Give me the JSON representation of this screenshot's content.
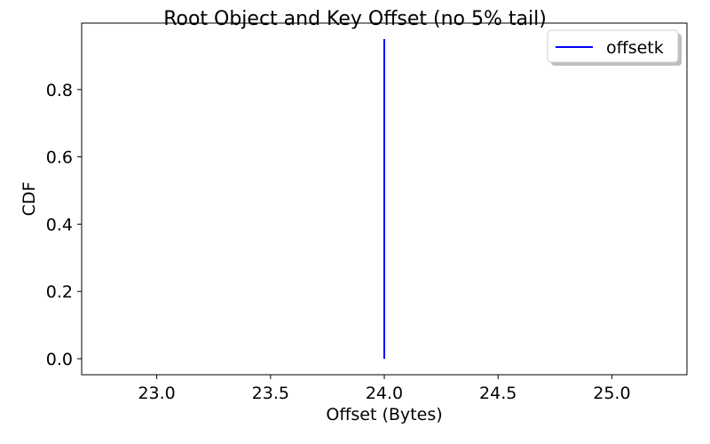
{
  "chart_data": {
    "type": "line",
    "title": "Root Object and Key Offset (no 5% tail)",
    "xlabel": "Offset (Bytes)",
    "ylabel": "CDF",
    "xlim": [
      22.67,
      25.33
    ],
    "ylim": [
      -0.0475,
      0.9975
    ],
    "x_ticks": [
      23.0,
      23.5,
      24.0,
      24.5,
      25.0
    ],
    "x_tick_labels": [
      "23.0",
      "23.5",
      "24.0",
      "24.5",
      "25.0"
    ],
    "y_ticks": [
      0.0,
      0.2,
      0.4,
      0.6,
      0.8
    ],
    "y_tick_labels": [
      "0.0",
      "0.2",
      "0.4",
      "0.6",
      "0.8"
    ],
    "grid": false,
    "legend_position": "top-right",
    "series": [
      {
        "name": "offsetk",
        "color": "#0000ff",
        "x": [
          24.0,
          24.0
        ],
        "y": [
          0.0,
          0.95
        ]
      }
    ]
  }
}
